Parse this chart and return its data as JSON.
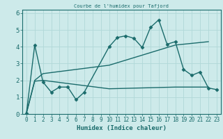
{
  "title": "Courbe de l'humidex pour Tafjord",
  "xlabel": "Humidex (Indice chaleur)",
  "background_color": "#cdeaea",
  "grid_color": "#b0d8d8",
  "line_color": "#1a6b6b",
  "xlim": [
    -0.5,
    23.5
  ],
  "ylim": [
    0,
    6.2
  ],
  "xticks": [
    0,
    1,
    2,
    3,
    4,
    5,
    6,
    7,
    8,
    9,
    10,
    11,
    12,
    13,
    14,
    15,
    16,
    17,
    18,
    19,
    20,
    21,
    22,
    23
  ],
  "yticks": [
    0,
    1,
    2,
    3,
    4,
    5,
    6
  ],
  "series1_x": [
    0,
    1,
    2,
    3,
    4,
    5,
    6,
    7,
    10,
    11,
    12,
    13,
    14,
    15,
    16,
    17,
    18,
    19,
    20,
    21,
    22,
    23
  ],
  "series1_y": [
    0.05,
    4.1,
    1.9,
    1.3,
    1.6,
    1.6,
    0.85,
    1.3,
    4.0,
    4.55,
    4.65,
    4.5,
    3.95,
    5.15,
    5.6,
    4.15,
    4.3,
    2.65,
    2.3,
    2.5,
    1.55,
    1.45
  ],
  "series2_x": [
    0,
    1,
    2,
    10,
    18,
    22
  ],
  "series2_y": [
    0.05,
    2.0,
    2.4,
    2.9,
    4.1,
    4.3
  ],
  "series3_x": [
    0,
    1,
    2,
    10,
    18,
    22
  ],
  "series3_y": [
    0.05,
    1.95,
    2.0,
    1.5,
    1.6,
    1.6
  ]
}
